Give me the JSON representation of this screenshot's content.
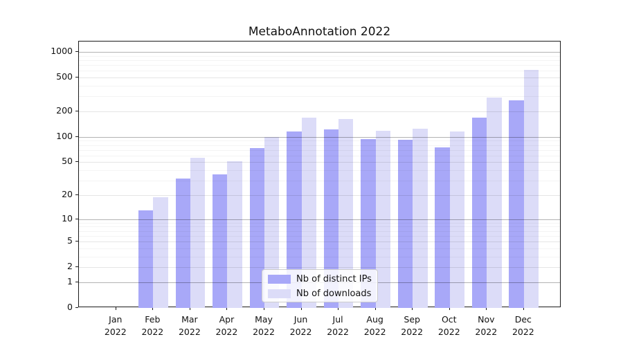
{
  "chart_data": {
    "type": "bar",
    "title": "MetaboAnnotation 2022",
    "categories": [
      "Jan",
      "Feb",
      "Mar",
      "Apr",
      "May",
      "Jun",
      "Jul",
      "Aug",
      "Sep",
      "Oct",
      "Nov",
      "Dec"
    ],
    "category_year": "2022",
    "series": [
      {
        "name": "Nb of distinct IPs",
        "color": "#a8a8f8",
        "values": [
          0,
          13,
          32,
          36,
          74,
          115,
          122,
          94,
          93,
          75,
          170,
          270
        ]
      },
      {
        "name": "Nb of downloads",
        "color": "#dcdcf8",
        "values": [
          0,
          19,
          57,
          51,
          100,
          170,
          162,
          119,
          126,
          117,
          290,
          610
        ]
      }
    ],
    "xlabel": "",
    "ylabel": "",
    "yscale": "log1p",
    "yticks": [
      0,
      1,
      2,
      5,
      10,
      20,
      50,
      100,
      200,
      500,
      1000
    ],
    "ylim": [
      0,
      1311
    ],
    "grid": true,
    "legend_position": "lower center"
  }
}
